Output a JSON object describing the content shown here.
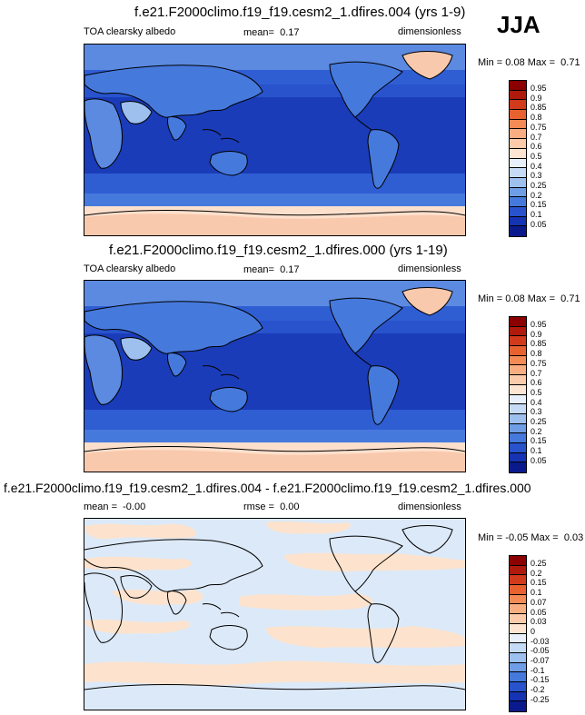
{
  "season": "JJA",
  "panels": [
    {
      "title": "f.e21.F2000climo.f19_f19.cesm2_1.dfires.004 (yrs 1-9)",
      "variable": "TOA clearsky albedo",
      "mean_label": "mean=",
      "mean": "0.17",
      "units": "dimensionless",
      "min_label": "Min =",
      "min": "0.08",
      "max_label": "Max =",
      "max": "0.71",
      "levels": [
        "0.95",
        "0.9",
        "0.85",
        "0.8",
        "0.75",
        "0.7",
        "0.6",
        "0.5",
        "0.4",
        "0.3",
        "0.25",
        "0.2",
        "0.15",
        "0.1",
        "0.05"
      ],
      "colors": [
        "#8b0000",
        "#b01a0c",
        "#d13a1a",
        "#e8622f",
        "#f48a55",
        "#f9ae82",
        "#fccbac",
        "#fde5d2",
        "#e8f1fb",
        "#c6dcf6",
        "#9dc0ef",
        "#6f9ee6",
        "#4679dc",
        "#2853cc",
        "#1633b4",
        "#0a1a8c"
      ]
    },
    {
      "title": "f.e21.F2000climo.f19_f19.cesm2_1.dfires.000 (yrs 1-19)",
      "variable": "TOA clearsky albedo",
      "mean_label": "mean=",
      "mean": "0.17",
      "units": "dimensionless",
      "min_label": "Min =",
      "min": "0.08",
      "max_label": "Max =",
      "max": "0.71",
      "levels": [
        "0.95",
        "0.9",
        "0.85",
        "0.8",
        "0.75",
        "0.7",
        "0.6",
        "0.5",
        "0.4",
        "0.3",
        "0.25",
        "0.2",
        "0.15",
        "0.1",
        "0.05"
      ],
      "colors": [
        "#8b0000",
        "#b01a0c",
        "#d13a1a",
        "#e8622f",
        "#f48a55",
        "#f9ae82",
        "#fccbac",
        "#fde5d2",
        "#e8f1fb",
        "#c6dcf6",
        "#9dc0ef",
        "#6f9ee6",
        "#4679dc",
        "#2853cc",
        "#1633b4",
        "#0a1a8c"
      ]
    },
    {
      "title": "f.e21.F2000climo.f19_f19.cesm2_1.dfires.004 - f.e21.F2000climo.f19_f19.cesm2_1.dfires.000",
      "mean_label": "mean =",
      "mean": "-0.00",
      "rmse_label": "rmse =",
      "rmse": "0.00",
      "units": "dimensionless",
      "min_label": "Min =",
      "min": "-0.05",
      "max_label": "Max =",
      "max": "0.03",
      "levels": [
        "0.25",
        "0.2",
        "0.15",
        "0.1",
        "0.07",
        "0.05",
        "0.03",
        "0",
        "-0.03",
        "-0.05",
        "-0.07",
        "-0.1",
        "-0.15",
        "-0.2",
        "-0.25"
      ],
      "colors": [
        "#8b0000",
        "#b01a0c",
        "#d13a1a",
        "#e8622f",
        "#f48a55",
        "#f9ae82",
        "#fccbac",
        "#fde5d2",
        "#e8f1fb",
        "#c6dcf6",
        "#9dc0ef",
        "#6f9ee6",
        "#4679dc",
        "#2853cc",
        "#1633b4",
        "#0a1a8c"
      ]
    }
  ],
  "palette": {
    "ocean_deep": "#1a3cb8",
    "ocean_mid": "#2f5ed3",
    "land": "#5b8ae0",
    "land_bright": "#9dc0ef",
    "polar": "#f9c9ad",
    "polar_band": "#fde0cc",
    "diff_blue": "#dce9f8",
    "diff_orange": "#fde3cd"
  }
}
